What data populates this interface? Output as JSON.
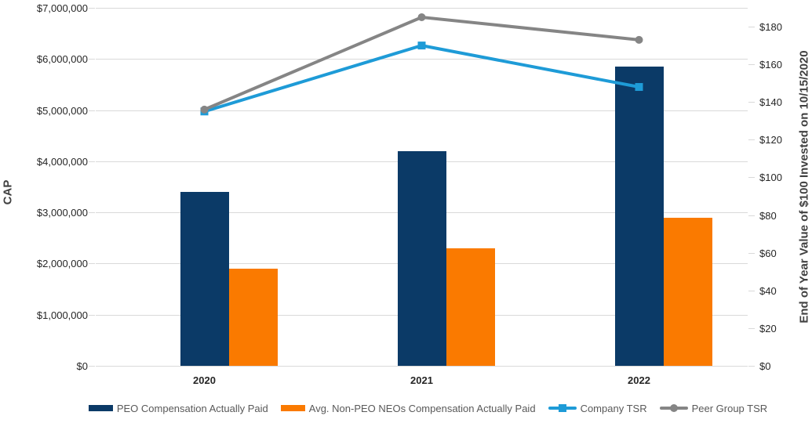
{
  "chart": {
    "left_axis": {
      "title": "CAP",
      "tick_labels": [
        "$0",
        "$1,000,000",
        "$2,000,000",
        "$3,000,000",
        "$4,000,000",
        "$5,000,000",
        "$6,000,000",
        "$7,000,000"
      ],
      "min": 0,
      "max": 7000000,
      "tick_step": 1000000
    },
    "right_axis": {
      "title": "End of Year Value of $100 Invested on 10/15/2020",
      "tick_labels": [
        "$0",
        "$20",
        "$40",
        "$60",
        "$80",
        "$100",
        "$120",
        "$140",
        "$160",
        "$180"
      ],
      "min": 0,
      "max": 190,
      "tick_step": 20
    },
    "colors": {
      "peo_bar": "#0B3A67",
      "neo_bar": "#FA7A00",
      "company_tsr": "#1E9BD7",
      "peer_tsr": "#858585",
      "gridline": "#D9D9D9",
      "tick_text": "#262626",
      "legend_text": "#595959",
      "axis_title_text": "#404040"
    }
  },
  "chart_data": {
    "type": "combo-bar-line",
    "title": "",
    "categories": [
      "2020",
      "2021",
      "2022"
    ],
    "series": [
      {
        "name": "PEO Compensation Actually Paid",
        "type": "bar",
        "axis": "left",
        "color": "#0B3A67",
        "values": [
          3400000,
          4200000,
          5850000
        ]
      },
      {
        "name": "Avg. Non-PEO NEOs Compensation Actually Paid",
        "type": "bar",
        "axis": "left",
        "color": "#FA7A00",
        "values": [
          1900000,
          2300000,
          2900000
        ]
      },
      {
        "name": "Company TSR",
        "type": "line",
        "marker": "square",
        "axis": "right",
        "color": "#1E9BD7",
        "values": [
          135,
          170,
          148
        ]
      },
      {
        "name": "Peer Group TSR",
        "type": "line",
        "marker": "circle",
        "axis": "right",
        "color": "#858585",
        "values": [
          136,
          185,
          173
        ]
      }
    ],
    "left_ylabel": "CAP",
    "right_ylabel": "End of Year Value of $100 Invested on 10/15/2020",
    "left_ylim": [
      0,
      7000000
    ],
    "right_ylim": [
      0,
      190
    ],
    "grid": true,
    "legend_position": "bottom"
  }
}
